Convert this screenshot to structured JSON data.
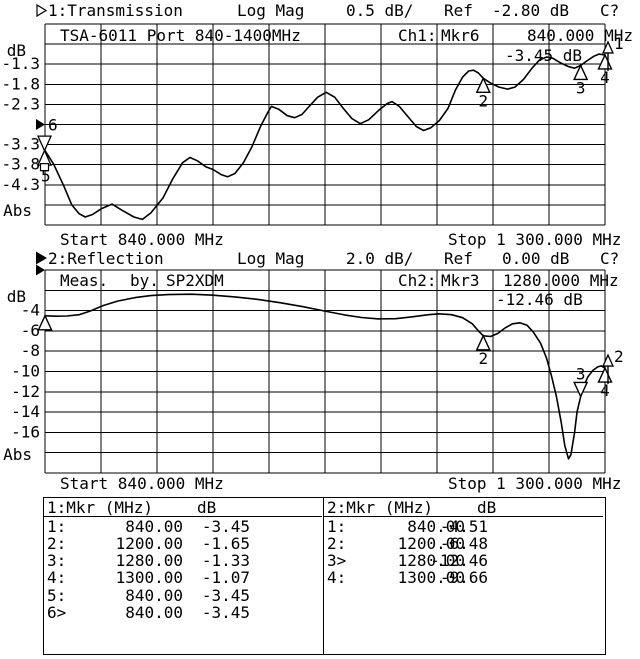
{
  "display": {
    "bg": "#ffffff",
    "fg": "#000000"
  },
  "channel1": {
    "title": {
      "label": "1:Transmission",
      "format": "Log Mag",
      "scale": "0.5 dB/",
      "ref_word": "Ref",
      "ref_value": "-2.80 dB",
      "cal_status": "C?",
      "selected": false
    },
    "header": {
      "device_label": "TSA-6011 Port 840-1400MHz",
      "channel": "Ch1:",
      "active_marker": "Mkr6",
      "marker_freq": "840.000 MHz"
    },
    "marker_readout": "-3.45 dB",
    "start_label": "Start 840.000 MHz",
    "stop_label": "Stop 1 300.000 MHz"
  },
  "channel2": {
    "title": {
      "label": "2:Reflection",
      "format": "Log Mag",
      "scale": "2.0 dB/",
      "ref_word": "Ref",
      "ref_value": "0.00 dB",
      "cal_status": "C?",
      "selected": true
    },
    "header": {
      "word1": "Meas.",
      "word2": "by.",
      "word3": "SP2XDM",
      "channel": "Ch2:",
      "active_marker": "Mkr3",
      "marker_freq": "1280.000 MHz"
    },
    "marker_readout": "-12.46 dB",
    "start_label": "Start 840.000 MHz",
    "stop_label": "Stop 1 300.000 MHz"
  },
  "marker_tables": {
    "left": {
      "title": "1:Mkr (MHz)",
      "unit": "dB",
      "rows": [
        {
          "n": "1:",
          "f": "840.00",
          "v": "-3.45"
        },
        {
          "n": "2:",
          "f": "1200.00",
          "v": "-1.65"
        },
        {
          "n": "3:",
          "f": "1280.00",
          "v": "-1.33"
        },
        {
          "n": "4:",
          "f": "1300.00",
          "v": "-1.07"
        },
        {
          "n": "5:",
          "f": "840.00",
          "v": "-3.45"
        },
        {
          "n": "6>",
          "f": "840.00",
          "v": "-3.45"
        }
      ]
    },
    "right": {
      "title": "2:Mkr (MHz)",
      "unit": "dB",
      "rows": [
        {
          "n": "1:",
          "f": "840.00",
          "v": "-4.51"
        },
        {
          "n": "2:",
          "f": "1200.00",
          "v": "-6.48"
        },
        {
          "n": "3>",
          "f": "1280.00",
          "v": "-12.46"
        },
        {
          "n": "4:",
          "f": "1300.00",
          "v": "-9.66"
        }
      ]
    }
  },
  "chart_data": [
    {
      "type": "line",
      "title": "1:Transmission Log Mag",
      "x_unit": "MHz",
      "y_unit": "dB",
      "xlim": [
        840,
        1300
      ],
      "ylim": [
        -0.3,
        -5.3
      ],
      "y_per_div": 0.5,
      "ref_level_db": -2.8,
      "grid": true,
      "y_axis_labels": [
        {
          "text": "dB",
          "y": 51
        },
        {
          "text": "-1.3",
          "db": -1.3
        },
        {
          "text": "-1.8",
          "db": -1.8
        },
        {
          "text": "-2.3",
          "db": -2.3
        },
        {
          "text": "-3.3",
          "db": -3.3
        },
        {
          "text": "-3.8",
          "db": -3.8
        },
        {
          "text": "-4.3",
          "db": -4.3
        },
        {
          "text": "Abs",
          "y": 211
        }
      ],
      "trace": [
        [
          840,
          -3.45
        ],
        [
          847,
          -3.78
        ],
        [
          855,
          -4.3
        ],
        [
          862,
          -4.8
        ],
        [
          868,
          -5.02
        ],
        [
          873,
          -5.1
        ],
        [
          879,
          -5.04
        ],
        [
          886,
          -4.9
        ],
        [
          895,
          -4.78
        ],
        [
          903,
          -4.93
        ],
        [
          913,
          -5.1
        ],
        [
          920,
          -5.16
        ],
        [
          927,
          -5.0
        ],
        [
          937,
          -4.62
        ],
        [
          945,
          -4.15
        ],
        [
          953,
          -3.75
        ],
        [
          959,
          -3.62
        ],
        [
          965,
          -3.7
        ],
        [
          972,
          -3.85
        ],
        [
          978,
          -3.92
        ],
        [
          985,
          -4.05
        ],
        [
          990,
          -4.1
        ],
        [
          996,
          -4.02
        ],
        [
          1003,
          -3.75
        ],
        [
          1010,
          -3.35
        ],
        [
          1017,
          -2.85
        ],
        [
          1023,
          -2.5
        ],
        [
          1026,
          -2.35
        ],
        [
          1032,
          -2.42
        ],
        [
          1039,
          -2.58
        ],
        [
          1045,
          -2.63
        ],
        [
          1051,
          -2.55
        ],
        [
          1057,
          -2.35
        ],
        [
          1064,
          -2.12
        ],
        [
          1071,
          -2.0
        ],
        [
          1078,
          -2.12
        ],
        [
          1085,
          -2.4
        ],
        [
          1092,
          -2.65
        ],
        [
          1099,
          -2.78
        ],
        [
          1106,
          -2.68
        ],
        [
          1114,
          -2.45
        ],
        [
          1121,
          -2.28
        ],
        [
          1125,
          -2.23
        ],
        [
          1131,
          -2.35
        ],
        [
          1138,
          -2.6
        ],
        [
          1145,
          -2.85
        ],
        [
          1151,
          -2.95
        ],
        [
          1157,
          -2.88
        ],
        [
          1164,
          -2.7
        ],
        [
          1171,
          -2.4
        ],
        [
          1177,
          -1.95
        ],
        [
          1183,
          -1.62
        ],
        [
          1188,
          -1.47
        ],
        [
          1192,
          -1.45
        ],
        [
          1196,
          -1.52
        ],
        [
          1200,
          -1.65
        ],
        [
          1206,
          -1.77
        ],
        [
          1213,
          -1.87
        ],
        [
          1220,
          -1.92
        ],
        [
          1226,
          -1.87
        ],
        [
          1233,
          -1.68
        ],
        [
          1240,
          -1.4
        ],
        [
          1246,
          -1.2
        ],
        [
          1252,
          -1.12
        ],
        [
          1257,
          -1.15
        ],
        [
          1263,
          -1.26
        ],
        [
          1270,
          -1.36
        ],
        [
          1275,
          -1.4
        ],
        [
          1280,
          -1.33
        ],
        [
          1285,
          -1.22
        ],
        [
          1291,
          -1.1
        ],
        [
          1295,
          -1.05
        ],
        [
          1300,
          -1.07
        ]
      ],
      "markers": [
        {
          "n": 1,
          "mhz": 840,
          "db": -3.45,
          "glyph": null,
          "label": ""
        },
        {
          "n": 2,
          "mhz": 1200,
          "db": -1.65,
          "glyph": "up",
          "label": "2"
        },
        {
          "n": 3,
          "mhz": 1280,
          "db": -1.33,
          "glyph": "up",
          "label": "3"
        },
        {
          "n": 4,
          "mhz": 1300,
          "db": -1.07,
          "glyph": "up",
          "label": "4"
        },
        {
          "n": 5,
          "mhz": 840,
          "db": -3.45,
          "glyph": null,
          "label": ""
        },
        {
          "n": 6,
          "mhz": 840,
          "db": -3.45,
          "glyph": null,
          "label": "",
          "active": true
        }
      ],
      "left_cluster": {
        "ref_db": -2.8,
        "bowtie_db": -3.45,
        "top_label": "6",
        "bottom_label": "5"
      },
      "trace_id_label": "1"
    },
    {
      "type": "line",
      "title": "2:Reflection Log Mag",
      "x_unit": "MHz",
      "y_unit": "dB",
      "xlim": [
        840,
        1300
      ],
      "ylim": [
        0,
        -20
      ],
      "y_per_div": 2.0,
      "ref_level_db": 0.0,
      "grid": true,
      "y_axis_labels": [
        {
          "text": "dB",
          "y": 297
        },
        {
          "text": "-4",
          "db": -4
        },
        {
          "text": "-6",
          "db": -6
        },
        {
          "text": "-8",
          "db": -8
        },
        {
          "text": "-10",
          "db": -10
        },
        {
          "text": "-12",
          "db": -12
        },
        {
          "text": "-14",
          "db": -14
        },
        {
          "text": "-16",
          "db": -16
        },
        {
          "text": "Abs",
          "y": 455
        }
      ],
      "trace": [
        [
          840,
          -4.51
        ],
        [
          849,
          -4.55
        ],
        [
          858,
          -4.53
        ],
        [
          868,
          -4.4
        ],
        [
          877,
          -4.05
        ],
        [
          888,
          -3.5
        ],
        [
          900,
          -3.05
        ],
        [
          914,
          -2.72
        ],
        [
          927,
          -2.52
        ],
        [
          941,
          -2.42
        ],
        [
          960,
          -2.38
        ],
        [
          978,
          -2.48
        ],
        [
          996,
          -2.65
        ],
        [
          1015,
          -2.9
        ],
        [
          1033,
          -3.22
        ],
        [
          1052,
          -3.62
        ],
        [
          1070,
          -4.05
        ],
        [
          1086,
          -4.42
        ],
        [
          1100,
          -4.68
        ],
        [
          1114,
          -4.82
        ],
        [
          1128,
          -4.8
        ],
        [
          1141,
          -4.62
        ],
        [
          1155,
          -4.4
        ],
        [
          1164,
          -4.32
        ],
        [
          1174,
          -4.4
        ],
        [
          1183,
          -4.7
        ],
        [
          1191,
          -5.3
        ],
        [
          1196,
          -6.0
        ],
        [
          1200,
          -6.48
        ],
        [
          1206,
          -6.55
        ],
        [
          1212,
          -6.25
        ],
        [
          1218,
          -5.7
        ],
        [
          1224,
          -5.3
        ],
        [
          1230,
          -5.2
        ],
        [
          1236,
          -5.45
        ],
        [
          1241,
          -6.1
        ],
        [
          1247,
          -7.2
        ],
        [
          1252,
          -8.7
        ],
        [
          1256,
          -10.4
        ],
        [
          1260,
          -12.4
        ],
        [
          1264,
          -15.0
        ],
        [
          1267,
          -17.3
        ],
        [
          1270,
          -18.6
        ],
        [
          1272,
          -18.2
        ],
        [
          1275,
          -16.0
        ],
        [
          1277,
          -14.0
        ],
        [
          1280,
          -12.46
        ],
        [
          1283,
          -11.3
        ],
        [
          1286,
          -10.5
        ],
        [
          1290,
          -9.9
        ],
        [
          1294,
          -9.55
        ],
        [
          1297,
          -9.45
        ],
        [
          1300,
          -9.66
        ]
      ],
      "markers": [
        {
          "n": 1,
          "mhz": 840,
          "db": -4.51,
          "glyph": "up",
          "label": ""
        },
        {
          "n": 2,
          "mhz": 1200,
          "db": -6.48,
          "glyph": "up",
          "label": "2"
        },
        {
          "n": 3,
          "mhz": 1280,
          "db": -12.46,
          "glyph": "down",
          "label": "3",
          "active": true
        },
        {
          "n": 4,
          "mhz": 1300,
          "db": -9.66,
          "glyph": "up",
          "label": "4"
        }
      ],
      "left_cluster": {
        "ref_db": 0
      },
      "trace_id_label": "2"
    }
  ]
}
